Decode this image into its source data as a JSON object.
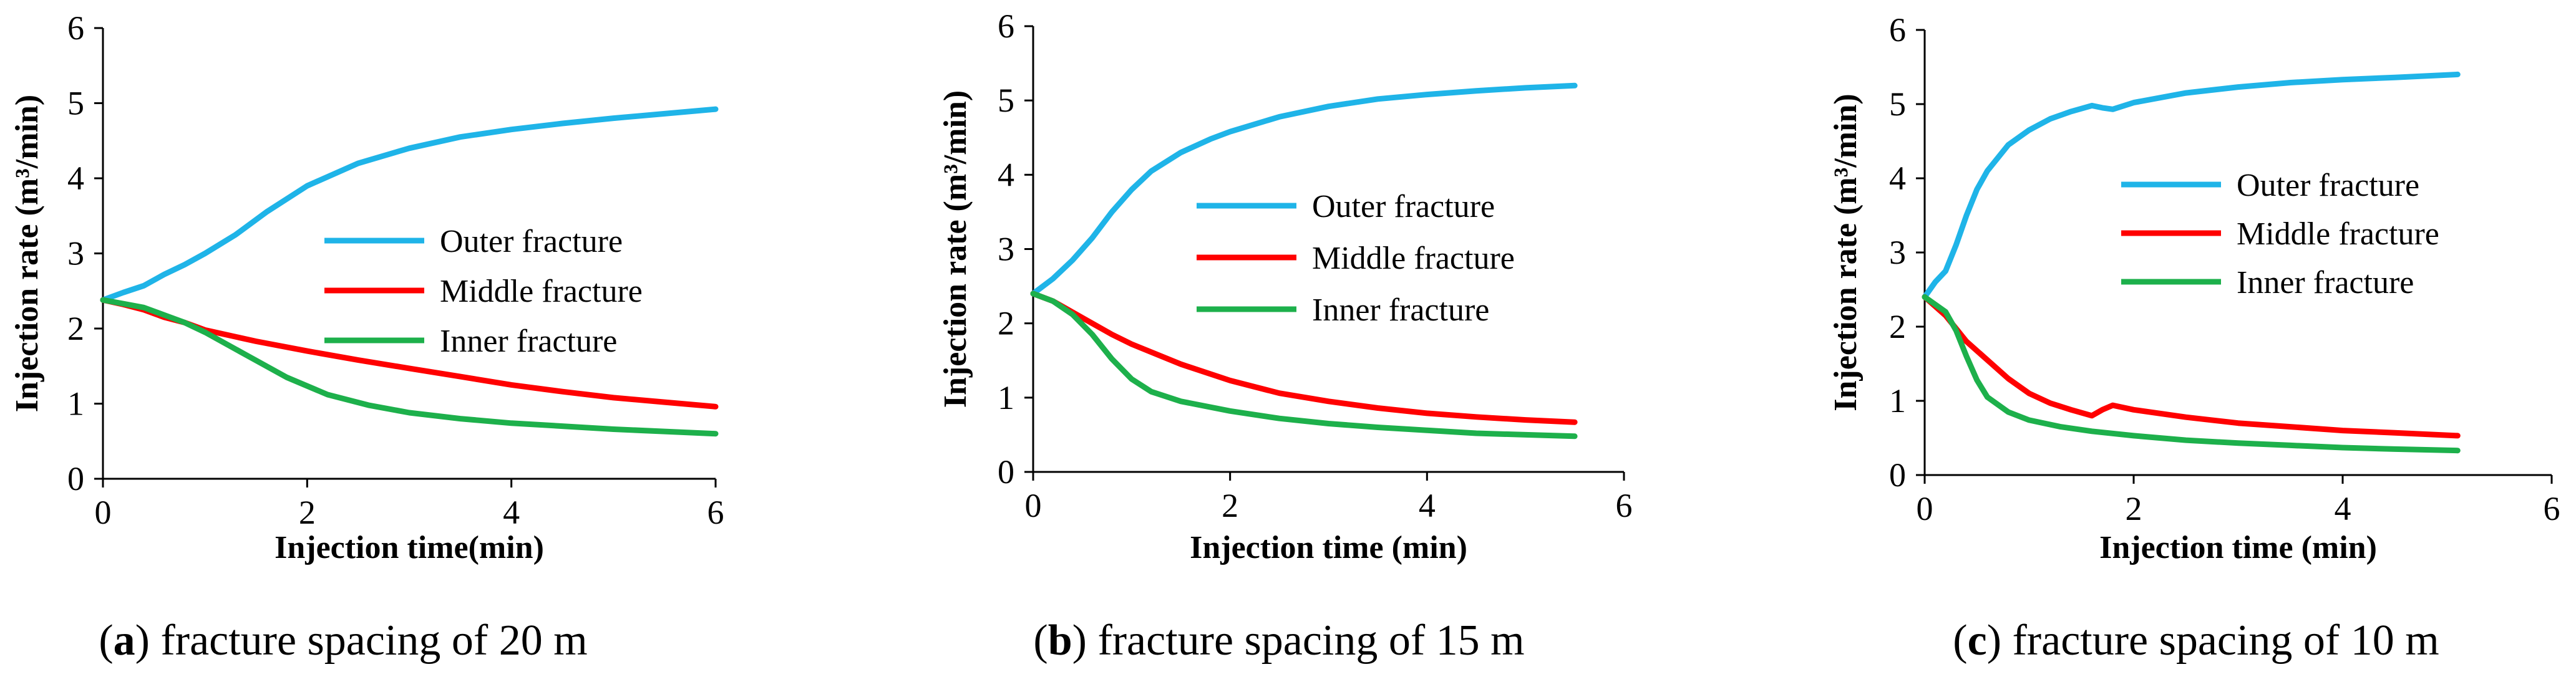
{
  "chart_data": [
    {
      "type": "line",
      "caption_letter": "a",
      "caption_text": "fracture spacing of 20 m",
      "xlabel": "Injection time(min)",
      "ylabel": "Injection rate  (m³/min)",
      "xlim": [
        0,
        6
      ],
      "ylim": [
        0,
        6
      ],
      "xticks": [
        "0",
        "2",
        "4",
        "6"
      ],
      "yticks": [
        "0",
        "1",
        "2",
        "3",
        "4",
        "5",
        "6"
      ],
      "legend_position": "center-right",
      "series": [
        {
          "name": "Outer fracture",
          "color": "#1FB4E8",
          "x": [
            0,
            0.2,
            0.4,
            0.6,
            0.8,
            1.0,
            1.3,
            1.6,
            2.0,
            2.5,
            3.0,
            3.5,
            4.0,
            4.5,
            5.0,
            5.5,
            6.0
          ],
          "y": [
            2.38,
            2.48,
            2.57,
            2.72,
            2.85,
            3.0,
            3.25,
            3.55,
            3.9,
            4.2,
            4.4,
            4.55,
            4.65,
            4.73,
            4.8,
            4.86,
            4.92
          ]
        },
        {
          "name": "Middle fracture",
          "color": "#FF0000",
          "x": [
            0,
            0.2,
            0.4,
            0.6,
            0.8,
            1.0,
            1.5,
            2.0,
            2.5,
            3.0,
            3.5,
            4.0,
            4.5,
            5.0,
            5.5,
            6.0
          ],
          "y": [
            2.38,
            2.32,
            2.25,
            2.15,
            2.08,
            1.98,
            1.83,
            1.7,
            1.58,
            1.47,
            1.36,
            1.25,
            1.16,
            1.08,
            1.02,
            0.96
          ]
        },
        {
          "name": "Inner fracture",
          "color": "#1DB04B",
          "x": [
            0,
            0.2,
            0.4,
            0.6,
            0.8,
            1.0,
            1.4,
            1.8,
            2.2,
            2.6,
            3.0,
            3.5,
            4.0,
            4.5,
            5.0,
            5.5,
            6.0
          ],
          "y": [
            2.38,
            2.33,
            2.28,
            2.18,
            2.08,
            1.95,
            1.65,
            1.35,
            1.12,
            0.98,
            0.88,
            0.8,
            0.74,
            0.7,
            0.66,
            0.63,
            0.6
          ]
        }
      ]
    },
    {
      "type": "line",
      "caption_letter": "b",
      "caption_text": "fracture spacing of 15 m",
      "xlabel": "Injection time (min)",
      "ylabel": "Injection rate  (m³/min)",
      "xlim": [
        0,
        6
      ],
      "ylim": [
        0,
        6
      ],
      "xticks": [
        "0",
        "2",
        "4",
        "6"
      ],
      "yticks": [
        "0",
        "1",
        "2",
        "3",
        "4",
        "5",
        "6"
      ],
      "legend_position": "center-right",
      "series": [
        {
          "name": "Outer fracture",
          "color": "#1FB4E8",
          "x": [
            0,
            0.2,
            0.4,
            0.6,
            0.8,
            1.0,
            1.2,
            1.5,
            1.8,
            2.0,
            2.5,
            3.0,
            3.5,
            4.0,
            4.5,
            5.0,
            5.5
          ],
          "y": [
            2.4,
            2.6,
            2.85,
            3.15,
            3.5,
            3.8,
            4.05,
            4.3,
            4.48,
            4.58,
            4.78,
            4.92,
            5.02,
            5.08,
            5.13,
            5.17,
            5.2
          ]
        },
        {
          "name": "Middle fracture",
          "color": "#FF0000",
          "x": [
            0,
            0.2,
            0.4,
            0.6,
            0.8,
            1.0,
            1.5,
            2.0,
            2.5,
            3.0,
            3.5,
            4.0,
            4.5,
            5.0,
            5.5
          ],
          "y": [
            2.4,
            2.3,
            2.15,
            2.0,
            1.85,
            1.72,
            1.45,
            1.23,
            1.06,
            0.95,
            0.86,
            0.79,
            0.74,
            0.7,
            0.67
          ]
        },
        {
          "name": "Inner fracture",
          "color": "#1DB04B",
          "x": [
            0,
            0.2,
            0.4,
            0.6,
            0.8,
            1.0,
            1.2,
            1.5,
            2.0,
            2.5,
            3.0,
            3.5,
            4.0,
            4.5,
            5.0,
            5.5
          ],
          "y": [
            2.4,
            2.3,
            2.12,
            1.85,
            1.52,
            1.25,
            1.08,
            0.95,
            0.82,
            0.72,
            0.65,
            0.6,
            0.56,
            0.52,
            0.5,
            0.48
          ]
        }
      ]
    },
    {
      "type": "line",
      "caption_letter": "c",
      "caption_text": "fracture spacing of 10 m",
      "xlabel": "Injection time (min)",
      "ylabel": "Injection rate  (m³/min)",
      "xlim": [
        0,
        6
      ],
      "ylim": [
        0,
        6
      ],
      "xticks": [
        "0",
        "2",
        "4",
        "6"
      ],
      "yticks": [
        "0",
        "1",
        "2",
        "3",
        "4",
        "5",
        "6"
      ],
      "legend_position": "top-right",
      "series": [
        {
          "name": "Outer fracture",
          "color": "#1FB4E8",
          "x": [
            0,
            0.1,
            0.2,
            0.3,
            0.4,
            0.5,
            0.6,
            0.8,
            1.0,
            1.2,
            1.4,
            1.6,
            1.7,
            1.8,
            2.0,
            2.5,
            3.0,
            3.5,
            4.0,
            4.5,
            5.1
          ],
          "y": [
            2.4,
            2.6,
            2.75,
            3.1,
            3.5,
            3.85,
            4.1,
            4.45,
            4.65,
            4.8,
            4.9,
            4.98,
            4.95,
            4.93,
            5.02,
            5.15,
            5.23,
            5.29,
            5.33,
            5.36,
            5.4
          ]
        },
        {
          "name": "Middle fracture",
          "color": "#FF0000",
          "x": [
            0,
            0.2,
            0.4,
            0.6,
            0.8,
            1.0,
            1.2,
            1.4,
            1.6,
            1.7,
            1.8,
            2.0,
            2.5,
            3.0,
            3.5,
            4.0,
            4.5,
            5.1
          ],
          "y": [
            2.4,
            2.15,
            1.8,
            1.55,
            1.3,
            1.1,
            0.97,
            0.88,
            0.8,
            0.88,
            0.94,
            0.88,
            0.78,
            0.7,
            0.65,
            0.6,
            0.57,
            0.53
          ]
        },
        {
          "name": "Inner fracture",
          "color": "#1DB04B",
          "x": [
            0,
            0.2,
            0.3,
            0.4,
            0.5,
            0.6,
            0.8,
            1.0,
            1.3,
            1.6,
            2.0,
            2.5,
            3.0,
            3.5,
            4.0,
            4.5,
            5.1
          ],
          "y": [
            2.4,
            2.2,
            1.95,
            1.6,
            1.28,
            1.05,
            0.85,
            0.74,
            0.65,
            0.59,
            0.53,
            0.47,
            0.43,
            0.4,
            0.37,
            0.35,
            0.33
          ]
        }
      ]
    }
  ]
}
